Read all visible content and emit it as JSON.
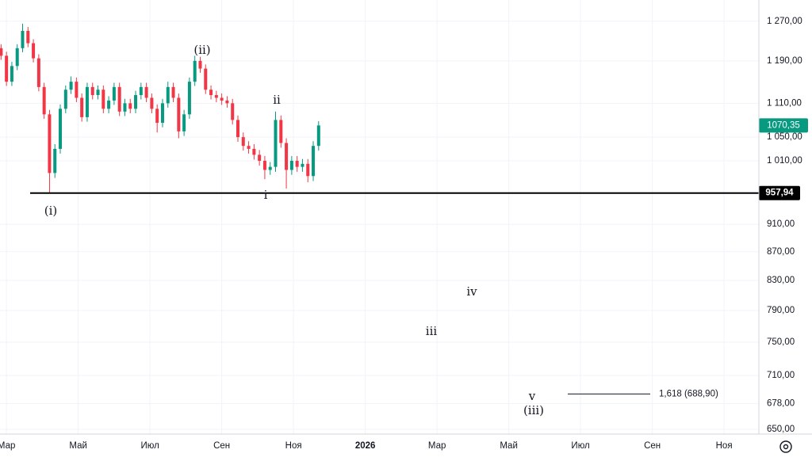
{
  "chart_data": {
    "type": "candlestick",
    "log_scale": true,
    "grid": true,
    "up_color": "#089981",
    "down_color": "#f23645",
    "x": [
      -0.15,
      0,
      0.15,
      0.3,
      0.45,
      0.6,
      0.75,
      0.9,
      1.05,
      1.2,
      1.35,
      1.5,
      1.65,
      1.8,
      1.95,
      2.1,
      2.25,
      2.4,
      2.55,
      2.7,
      2.85,
      3,
      3.15,
      3.3,
      3.45,
      3.6,
      3.75,
      3.9,
      4.05,
      4.2,
      4.35,
      4.5,
      4.65,
      4.8,
      4.95,
      5.1,
      5.25,
      5.4,
      5.55,
      5.7,
      5.85,
      6,
      6.15,
      6.3,
      6.45,
      6.6,
      6.75,
      6.9,
      7.05,
      7.2,
      7.35,
      7.5,
      7.65,
      7.8,
      7.95,
      8.1,
      8.25,
      8.4,
      8.55,
      8.7
    ],
    "open": [
      1215,
      1200,
      1150,
      1180,
      1215,
      1250,
      1225,
      1195,
      1140,
      1090,
      990,
      1030,
      1100,
      1135,
      1150,
      1120,
      1085,
      1140,
      1125,
      1135,
      1100,
      1115,
      1140,
      1095,
      1110,
      1100,
      1125,
      1140,
      1120,
      1100,
      1075,
      1110,
      1140,
      1120,
      1060,
      1090,
      1150,
      1190,
      1175,
      1135,
      1125,
      1120,
      1115,
      1110,
      1080,
      1050,
      1035,
      1030,
      1020,
      1010,
      995,
      1000,
      1080,
      1040,
      995,
      1010,
      1000,
      1005,
      985,
      1035
    ],
    "high": [
      1223,
      1208,
      1188,
      1223,
      1265,
      1258,
      1233,
      1203,
      1148,
      1098,
      1038,
      1108,
      1143,
      1160,
      1158,
      1128,
      1148,
      1148,
      1143,
      1143,
      1123,
      1148,
      1148,
      1118,
      1118,
      1133,
      1148,
      1148,
      1128,
      1108,
      1118,
      1150,
      1148,
      1128,
      1098,
      1158,
      1200,
      1198,
      1183,
      1143,
      1133,
      1128,
      1123,
      1118,
      1088,
      1058,
      1043,
      1038,
      1028,
      1018,
      1008,
      1095,
      1088,
      1048,
      1018,
      1018,
      1013,
      1013,
      1043,
      1078
    ],
    "low": [
      1192,
      1142,
      1142,
      1172,
      1207,
      1217,
      1187,
      1132,
      1082,
      957.94,
      982,
      1022,
      1092,
      1127,
      1112,
      1077,
      1077,
      1117,
      1117,
      1092,
      1092,
      1107,
      1087,
      1087,
      1092,
      1092,
      1117,
      1112,
      1092,
      1058,
      1067,
      1102,
      1112,
      1048,
      1052,
      1082,
      1142,
      1167,
      1127,
      1117,
      1112,
      1107,
      1102,
      1072,
      1042,
      1027,
      1022,
      1012,
      1002,
      980,
      987,
      992,
      1032,
      965,
      987,
      992,
      992,
      975,
      977,
      1027
    ],
    "close": [
      1200,
      1150,
      1180,
      1215,
      1250,
      1225,
      1195,
      1140,
      1090,
      990,
      1030,
      1100,
      1135,
      1150,
      1120,
      1085,
      1140,
      1125,
      1135,
      1100,
      1115,
      1140,
      1095,
      1110,
      1100,
      1125,
      1140,
      1120,
      1100,
      1075,
      1110,
      1140,
      1120,
      1060,
      1090,
      1150,
      1190,
      1175,
      1135,
      1125,
      1120,
      1115,
      1110,
      1080,
      1050,
      1035,
      1030,
      1020,
      1010,
      995,
      1000,
      1080,
      1040,
      995,
      1010,
      1000,
      1005,
      985,
      1035,
      1070.35
    ],
    "xlim": [
      -0.18,
      20.97
    ],
    "xticks": [
      {
        "value": 0,
        "label": "Мар"
      },
      {
        "value": 2,
        "label": "Май"
      },
      {
        "value": 4,
        "label": "Июл"
      },
      {
        "value": 6,
        "label": "Сен"
      },
      {
        "value": 8,
        "label": "Ноя"
      },
      {
        "value": 10,
        "label": "2026"
      },
      {
        "value": 12,
        "label": "Мар"
      },
      {
        "value": 14,
        "label": "Май"
      },
      {
        "value": 16,
        "label": "Июл"
      },
      {
        "value": 18,
        "label": "Сен"
      },
      {
        "value": 20,
        "label": "Ноя"
      }
    ],
    "ylim": [
      645,
      1315
    ],
    "yticks": [
      {
        "value": 1270,
        "label": "1 270,00"
      },
      {
        "value": 1190,
        "label": "1 190,00"
      },
      {
        "value": 1110,
        "label": "1 110,00"
      },
      {
        "value": 1050,
        "label": "1 050,00"
      },
      {
        "value": 1010,
        "label": "1 010,00"
      },
      {
        "value": 910,
        "label": "910,00"
      },
      {
        "value": 870,
        "label": "870,00"
      },
      {
        "value": 830,
        "label": "830,00"
      },
      {
        "value": 790,
        "label": "790,00"
      },
      {
        "value": 750,
        "label": "750,00"
      },
      {
        "value": 710,
        "label": "710,00"
      },
      {
        "value": 678,
        "label": "678,00"
      },
      {
        "value": 650,
        "label": "650,00"
      }
    ],
    "last_price": {
      "value": 1070.35,
      "label": "1070,35"
    },
    "support_line": {
      "value": 957.94,
      "label": "957,94"
    },
    "target_line": {
      "value": 688.9,
      "label": "1,618 (688,90)"
    },
    "annotations": [
      "(i)",
      "(ii)",
      "ii",
      "i",
      "iii",
      "iv",
      "v",
      "(iii)"
    ]
  }
}
